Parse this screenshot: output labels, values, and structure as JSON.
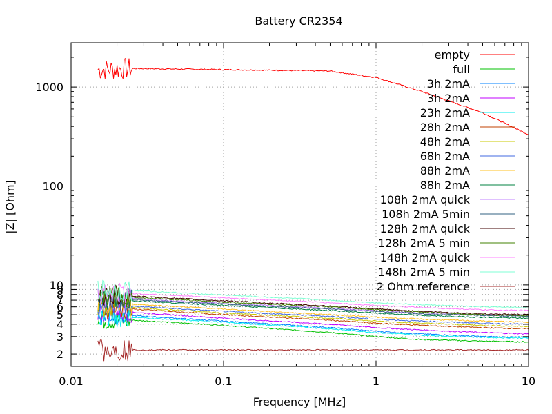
{
  "chart_data": {
    "type": "line",
    "title": "Battery CR2354",
    "xlabel": "Frequency [MHz]",
    "ylabel": "|Z| [Ohm]",
    "xscale": "log",
    "yscale": "log",
    "xlim": [
      0.01,
      10
    ],
    "ylim": [
      1.5,
      2800
    ],
    "grid": true,
    "legend": "top-right",
    "x_ticks": [
      {
        "value": 0.01,
        "label": "0.01"
      },
      {
        "value": 0.1,
        "label": "0.1"
      },
      {
        "value": 1,
        "label": "1"
      },
      {
        "value": 10,
        "label": "10"
      }
    ],
    "y_ticks": [
      {
        "value": 2,
        "label": "2"
      },
      {
        "value": 3,
        "label": "3"
      },
      {
        "value": 4,
        "label": "4"
      },
      {
        "value": 5,
        "label": "5"
      },
      {
        "value": 6,
        "label": "6"
      },
      {
        "value": 7,
        "label": "7"
      },
      {
        "value": 8,
        "label": "8"
      },
      {
        "value": 9,
        "label": "9"
      },
      {
        "value": 10,
        "label": "10"
      },
      {
        "value": 100,
        "label": "100"
      },
      {
        "value": 1000,
        "label": "1000"
      }
    ],
    "series": [
      {
        "name": "empty",
        "color": "#ff0000",
        "x": [
          0.015,
          0.025,
          0.1,
          0.5,
          1,
          2,
          5,
          10
        ],
        "y": [
          1500,
          1540,
          1500,
          1450,
          1250,
          900,
          550,
          330
        ]
      },
      {
        "name": "full",
        "color": "#00c000",
        "x": [
          0.015,
          0.025,
          0.1,
          0.5,
          1,
          2,
          5,
          10
        ],
        "y": [
          4.5,
          4.4,
          3.9,
          3.3,
          3.0,
          2.8,
          2.7,
          2.65
        ]
      },
      {
        "name": "3h  2mA",
        "color": "#0080ff",
        "x": [
          0.015,
          0.025,
          0.1,
          0.5,
          1,
          2,
          5,
          10
        ],
        "y": [
          5.0,
          4.9,
          4.3,
          3.7,
          3.4,
          3.2,
          3.0,
          2.95
        ]
      },
      {
        "name": "3h  2mA",
        "color": "#c000ff",
        "x": [
          0.015,
          0.025,
          0.1,
          0.5,
          1,
          2,
          5,
          10
        ],
        "y": [
          5.4,
          5.3,
          4.6,
          4.0,
          3.7,
          3.5,
          3.3,
          3.2
        ]
      },
      {
        "name": "23h  2mA",
        "color": "#00eeee",
        "x": [
          0.015,
          0.025,
          0.1,
          0.5,
          1,
          2,
          5,
          10
        ],
        "y": [
          4.8,
          4.7,
          4.2,
          3.6,
          3.3,
          3.1,
          2.95,
          2.9
        ]
      },
      {
        "name": "28h  2mA",
        "color": "#c04000",
        "x": [
          0.015,
          0.025,
          0.1,
          0.5,
          1,
          2,
          5,
          10
        ],
        "y": [
          5.8,
          5.7,
          5.0,
          4.4,
          4.1,
          3.9,
          3.7,
          3.6
        ]
      },
      {
        "name": "48h  2mA",
        "color": "#c8c800",
        "x": [
          0.015,
          0.025,
          0.1,
          0.5,
          1,
          2,
          5,
          10
        ],
        "y": [
          6.0,
          5.9,
          5.2,
          4.6,
          4.3,
          4.1,
          3.9,
          3.8
        ]
      },
      {
        "name": "68h  2mA",
        "color": "#4169e1",
        "x": [
          0.015,
          0.025,
          0.1,
          0.5,
          1,
          2,
          5,
          10
        ],
        "y": [
          6.2,
          6.1,
          5.4,
          4.8,
          4.5,
          4.3,
          4.1,
          4.0
        ]
      },
      {
        "name": "88h  2mA",
        "color": "#ffc020",
        "x": [
          0.015,
          0.025,
          0.1,
          0.5,
          1,
          2,
          5,
          10
        ],
        "y": [
          6.5,
          6.4,
          5.7,
          5.0,
          4.7,
          4.5,
          4.3,
          4.2
        ]
      },
      {
        "name": "88h  2mA",
        "color": "#008040",
        "x": [
          0.015,
          0.025,
          0.1,
          0.5,
          1,
          2,
          5,
          10
        ],
        "y": [
          7.0,
          6.9,
          6.2,
          5.5,
          5.2,
          4.9,
          4.7,
          4.6
        ]
      },
      {
        "name": "108h  2mA quick",
        "color": "#c080ff",
        "x": [
          0.015,
          0.025,
          0.1,
          0.5,
          1,
          2,
          5,
          10
        ],
        "y": [
          7.4,
          7.3,
          6.5,
          5.8,
          5.5,
          5.2,
          5.0,
          4.9
        ]
      },
      {
        "name": "108h  2mA 5min",
        "color": "#306080",
        "x": [
          0.015,
          0.025,
          0.1,
          0.5,
          1,
          2,
          5,
          10
        ],
        "y": [
          7.2,
          7.1,
          6.4,
          5.7,
          5.4,
          5.1,
          4.9,
          4.8
        ]
      },
      {
        "name": "128h  2mA quick",
        "color": "#400000",
        "x": [
          0.015,
          0.025,
          0.1,
          0.5,
          1,
          2,
          5,
          10
        ],
        "y": [
          7.8,
          7.7,
          6.9,
          6.1,
          5.7,
          5.4,
          5.1,
          5.0
        ]
      },
      {
        "name": "128h  2mA 5 min",
        "color": "#408000",
        "x": [
          0.015,
          0.025,
          0.1,
          0.5,
          1,
          2,
          5,
          10
        ],
        "y": [
          7.6,
          7.5,
          6.7,
          6.0,
          5.6,
          5.3,
          5.0,
          4.9
        ]
      },
      {
        "name": "148h  2mA quick",
        "color": "#ff80ff",
        "x": [
          0.015,
          0.025,
          0.1,
          0.5,
          1,
          2,
          5,
          10
        ],
        "y": [
          8.4,
          8.2,
          7.4,
          6.6,
          6.2,
          5.9,
          5.6,
          5.5
        ]
      },
      {
        "name": "148h  2mA 5 min",
        "color": "#7fffd4",
        "x": [
          0.015,
          0.025,
          0.1,
          0.5,
          1,
          2,
          5,
          10
        ],
        "y": [
          9.0,
          8.8,
          7.9,
          7.0,
          6.6,
          6.3,
          6.0,
          5.9
        ]
      },
      {
        "name": "2 Ohm reference",
        "color": "#a52a2a",
        "x": [
          0.015,
          0.025,
          0.1,
          0.5,
          1,
          2,
          5,
          10
        ],
        "y": [
          2.2,
          2.2,
          2.2,
          2.2,
          2.2,
          2.2,
          2.2,
          2.2
        ]
      }
    ]
  }
}
